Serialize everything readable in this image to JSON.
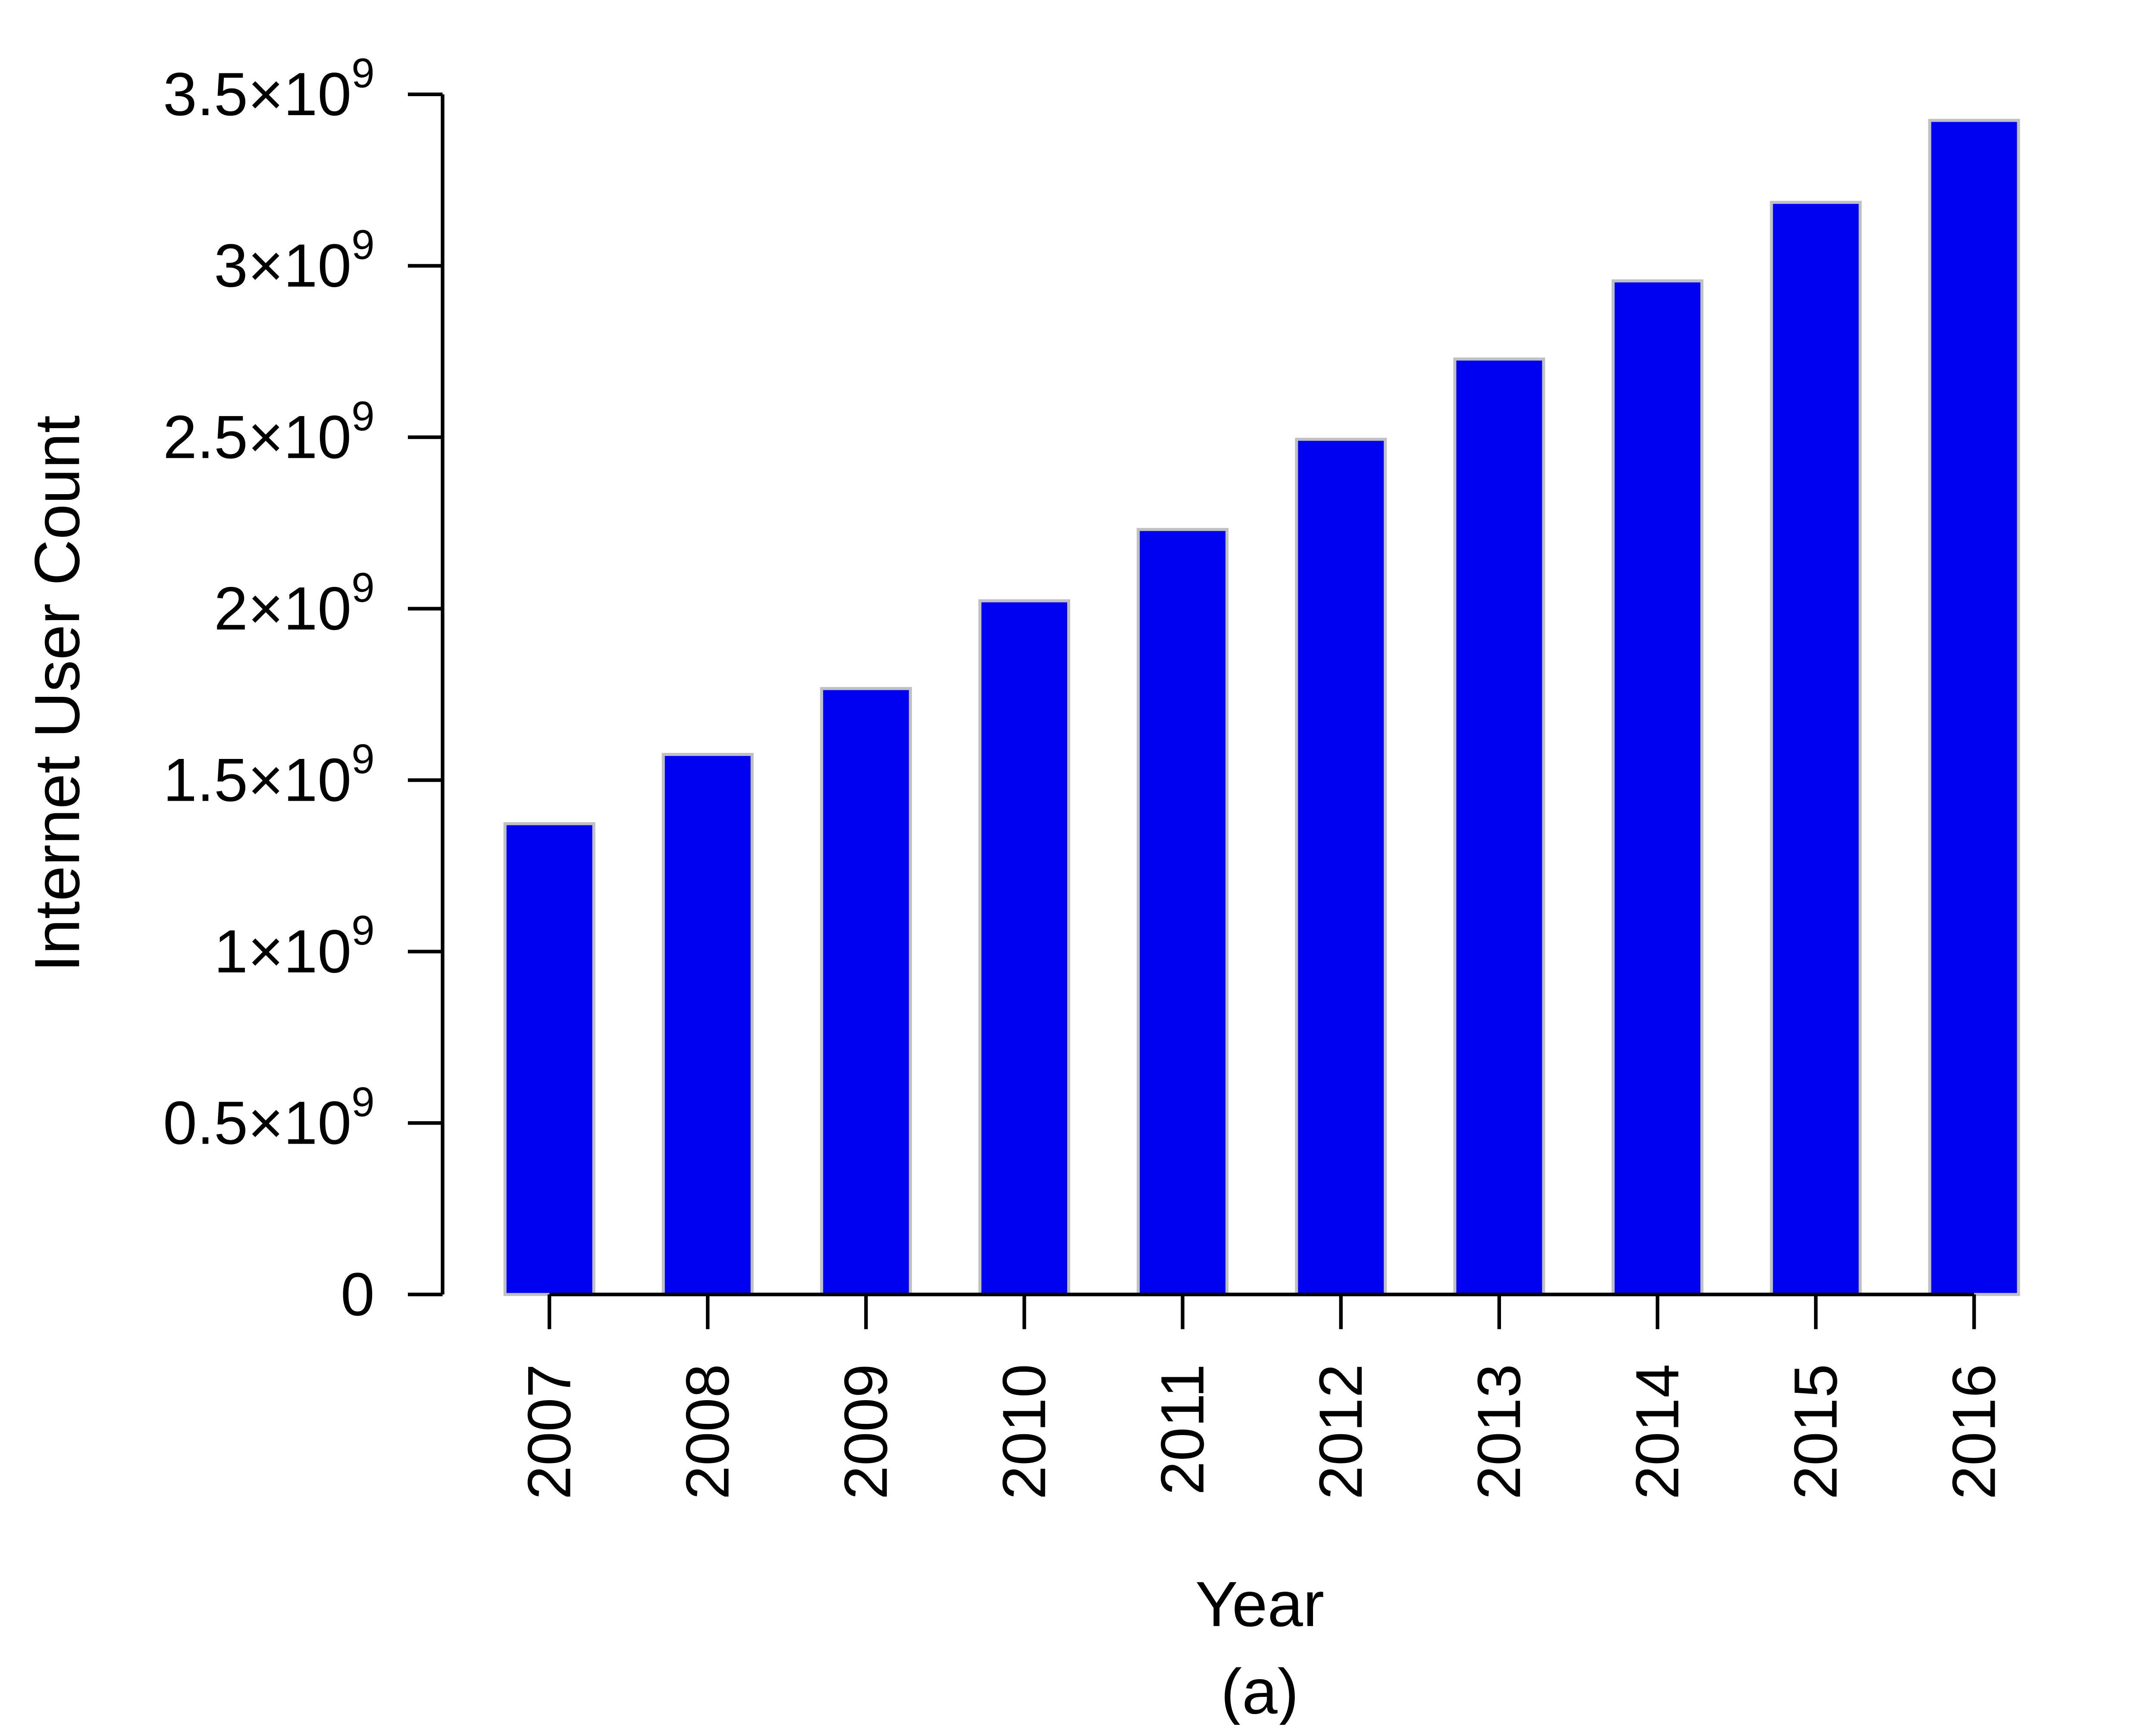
{
  "chart_data": {
    "type": "bar",
    "categories": [
      "2007",
      "2008",
      "2009",
      "2010",
      "2011",
      "2012",
      "2013",
      "2014",
      "2015",
      "2016"
    ],
    "values": [
      1373000000,
      1575000000,
      1767000000,
      2023000000,
      2231000000,
      2494000000,
      2728000000,
      2956000000,
      3185000000,
      3424000000
    ],
    "xlabel": "Year",
    "ylabel": "Internet User Count",
    "caption": "(a)",
    "ylim": [
      0,
      3500000000
    ],
    "yticks": [
      {
        "value": 0,
        "mantissa": "0",
        "times": "",
        "base": "",
        "exponent": ""
      },
      {
        "value": 500000000,
        "mantissa": "0.5",
        "times": "×",
        "base": "10",
        "exponent": "9"
      },
      {
        "value": 1000000000,
        "mantissa": "1",
        "times": "×",
        "base": "10",
        "exponent": "9"
      },
      {
        "value": 1500000000,
        "mantissa": "1.5",
        "times": "×",
        "base": "10",
        "exponent": "9"
      },
      {
        "value": 2000000000,
        "mantissa": "2",
        "times": "×",
        "base": "10",
        "exponent": "9"
      },
      {
        "value": 2500000000,
        "mantissa": "2.5",
        "times": "×",
        "base": "10",
        "exponent": "9"
      },
      {
        "value": 3000000000,
        "mantissa": "3",
        "times": "×",
        "base": "10",
        "exponent": "9"
      },
      {
        "value": 3500000000,
        "mantissa": "3.5",
        "times": "×",
        "base": "10",
        "exponent": "9"
      }
    ],
    "grid": false,
    "legend": "none",
    "colors": {
      "bar_fill": "#0000f0",
      "bar_stroke": "#c0c0c0",
      "axis": "#000000"
    }
  }
}
